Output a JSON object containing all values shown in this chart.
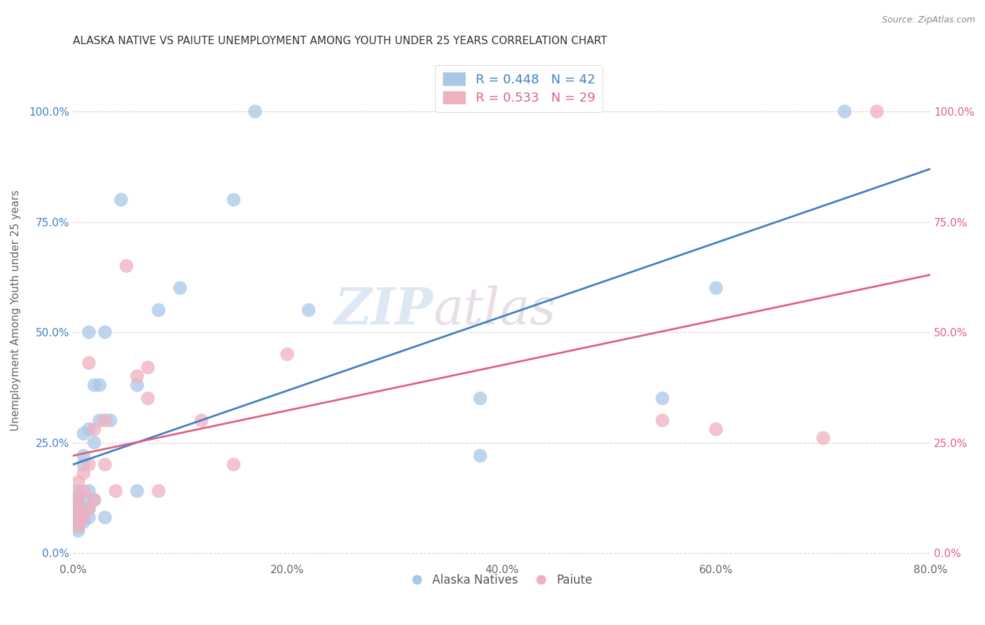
{
  "title": "ALASKA NATIVE VS PAIUTE UNEMPLOYMENT AMONG YOUTH UNDER 25 YEARS CORRELATION CHART",
  "source": "Source: ZipAtlas.com",
  "ylabel": "Unemployment Among Youth under 25 years",
  "xlabel_ticks": [
    "0.0%",
    "",
    "",
    "",
    "",
    "20.0%",
    "",
    "",
    "",
    "",
    "40.0%",
    "",
    "",
    "",
    "",
    "60.0%",
    "",
    "",
    "",
    "",
    "80.0%"
  ],
  "xlabel_vals": [
    0.0,
    0.04,
    0.08,
    0.12,
    0.16,
    0.2,
    0.24,
    0.28,
    0.32,
    0.36,
    0.4,
    0.44,
    0.48,
    0.52,
    0.56,
    0.6,
    0.64,
    0.68,
    0.72,
    0.76,
    0.8
  ],
  "ylabel_ticks": [
    "0.0%",
    "25.0%",
    "50.0%",
    "75.0%",
    "100.0%"
  ],
  "ylabel_vals": [
    0.0,
    0.25,
    0.5,
    0.75,
    1.0
  ],
  "xlim": [
    0.0,
    0.8
  ],
  "ylim": [
    -0.02,
    1.12
  ],
  "legend_blue_r": "R = 0.448",
  "legend_blue_n": "N = 42",
  "legend_pink_r": "R = 0.533",
  "legend_pink_n": "N = 29",
  "blue_color": "#a8c8e8",
  "pink_color": "#f0b0c0",
  "blue_line_color": "#4080c0",
  "pink_line_color": "#e06080",
  "watermark_zip": "ZIP",
  "watermark_atlas": "atlas",
  "blue_line_x": [
    0.0,
    0.8
  ],
  "blue_line_y": [
    0.2,
    0.87
  ],
  "pink_line_x": [
    0.0,
    0.8
  ],
  "pink_line_y": [
    0.22,
    0.63
  ],
  "alaska_x": [
    0.005,
    0.005,
    0.005,
    0.005,
    0.005,
    0.005,
    0.005,
    0.005,
    0.005,
    0.01,
    0.01,
    0.01,
    0.01,
    0.01,
    0.01,
    0.012,
    0.015,
    0.015,
    0.015,
    0.015,
    0.015,
    0.02,
    0.02,
    0.02,
    0.025,
    0.025,
    0.03,
    0.03,
    0.035,
    0.045,
    0.06,
    0.06,
    0.08,
    0.1,
    0.15,
    0.17,
    0.22,
    0.38,
    0.38,
    0.55,
    0.6,
    0.72
  ],
  "alaska_y": [
    0.05,
    0.06,
    0.07,
    0.08,
    0.09,
    0.1,
    0.11,
    0.12,
    0.14,
    0.07,
    0.08,
    0.1,
    0.2,
    0.22,
    0.27,
    0.12,
    0.08,
    0.1,
    0.14,
    0.28,
    0.5,
    0.12,
    0.25,
    0.38,
    0.3,
    0.38,
    0.08,
    0.5,
    0.3,
    0.8,
    0.38,
    0.14,
    0.55,
    0.6,
    0.8,
    1.0,
    0.55,
    0.35,
    0.22,
    0.35,
    0.6,
    1.0
  ],
  "paiute_x": [
    0.005,
    0.005,
    0.005,
    0.005,
    0.005,
    0.005,
    0.01,
    0.01,
    0.01,
    0.015,
    0.015,
    0.015,
    0.02,
    0.02,
    0.03,
    0.03,
    0.04,
    0.05,
    0.06,
    0.07,
    0.07,
    0.08,
    0.12,
    0.15,
    0.2,
    0.55,
    0.6,
    0.7,
    0.75
  ],
  "paiute_y": [
    0.06,
    0.07,
    0.09,
    0.11,
    0.13,
    0.16,
    0.08,
    0.14,
    0.18,
    0.1,
    0.2,
    0.43,
    0.12,
    0.28,
    0.2,
    0.3,
    0.14,
    0.65,
    0.4,
    0.35,
    0.42,
    0.14,
    0.3,
    0.2,
    0.45,
    0.3,
    0.28,
    0.26,
    1.0
  ]
}
